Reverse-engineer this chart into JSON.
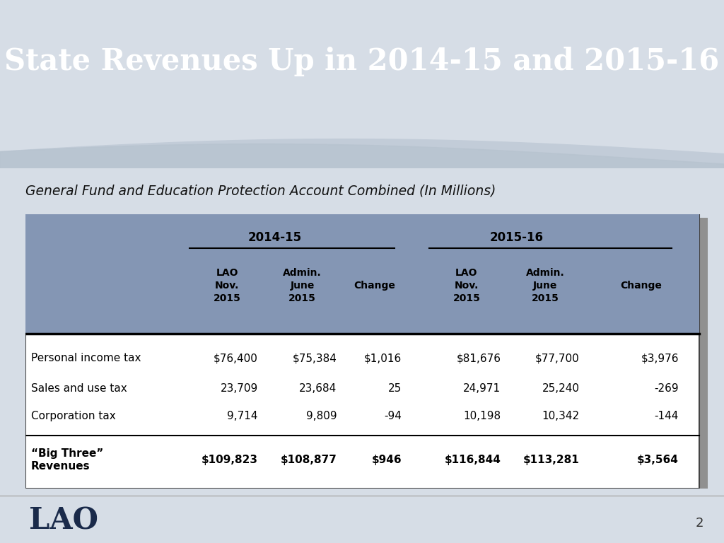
{
  "title": "State Revenues Up in 2014-15 and 2015-16",
  "subtitle": "General Fund and Education Protection Account Combined (In Millions)",
  "header_bg_color": "#4e6382",
  "title_color": "#ffffff",
  "slide_bg_color": "#d6dde6",
  "table_header_bg": "#8496b4",
  "table_border_color": "#555555",
  "rows": [
    [
      "Personal income tax",
      "$76,400",
      "$75,384",
      "$1,016",
      "$81,676",
      "$77,700",
      "$3,976"
    ],
    [
      "Sales and use tax",
      "23,709",
      "23,684",
      "25",
      "24,971",
      "25,240",
      "-269"
    ],
    [
      "Corporation tax",
      "9,714",
      "9,809",
      "-94",
      "10,198",
      "10,342",
      "-144"
    ],
    [
      "“Big Three”\nRevenues",
      "$109,823",
      "$108,877",
      "$946",
      "$116,844",
      "$113,281",
      "$3,564"
    ]
  ],
  "row_bold": [
    false,
    false,
    false,
    true
  ],
  "page_number": "2",
  "lao_text": "LAO",
  "footer_bg": "#d0d8e2"
}
